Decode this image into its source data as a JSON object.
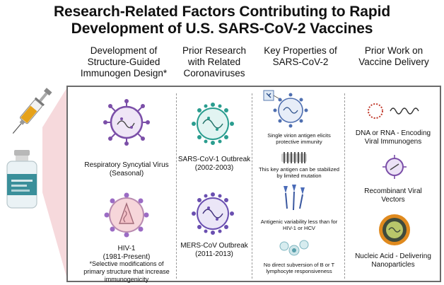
{
  "title": {
    "line1": "Research-Related Factors Contributing to Rapid",
    "line2": "Development of U.S. SARS-CoV-2 Vaccines"
  },
  "columns": [
    {
      "heading": [
        "Development of",
        "Structure-Guided",
        "Immunogen Design*"
      ],
      "items": [
        {
          "label": [
            "Respiratory Syncytial Virus",
            "(Seasonal)"
          ],
          "icon": "rsv-virus-icon"
        },
        {
          "label": [
            "HIV-1",
            "(1981-Present)"
          ],
          "icon": "hiv-virus-icon"
        }
      ],
      "note": [
        "*Selective modifications of",
        "primary structure that increase",
        "immunogenicity"
      ]
    },
    {
      "heading": [
        "Prior Research",
        "with Related",
        "Coronaviruses"
      ],
      "items": [
        {
          "label": [
            "SARS-CoV-1 Outbreak",
            "(2002-2003)"
          ],
          "icon": "sars-cov-1-virus-icon"
        },
        {
          "label": [
            "MERS-CoV Outbreak",
            "(2011-2013)"
          ],
          "icon": "mers-cov-virus-icon"
        }
      ]
    },
    {
      "heading": [
        "Key Properties of",
        "SARS-CoV-2"
      ],
      "items": [
        {
          "label": [
            "Single virion antigen elicits",
            "protective immunity"
          ],
          "icon": "virion-antigen-icon"
        },
        {
          "label": [
            "This key antigen can be stabilized",
            "by limited mutation"
          ],
          "icon": "stabilized-antigen-icon"
        },
        {
          "label": [
            "Antigenic variability less than for",
            "HIV-1 or HCV"
          ],
          "icon": "antigen-variants-icon"
        },
        {
          "label": [
            "No direct subversion of B or T",
            "lymphocyte responsiveness"
          ],
          "icon": "lymphocyte-icon"
        }
      ]
    },
    {
      "heading": [
        "Prior Work on",
        "Vaccine Delivery"
      ],
      "items": [
        {
          "label": [
            "DNA or RNA - Encoding",
            "Viral Immunogens"
          ],
          "icon": "dna-rna-icon"
        },
        {
          "label": [
            "Recombinant Viral",
            "Vectors"
          ],
          "icon": "viral-vector-icon"
        },
        {
          "label": [
            "Nucleic Acid - Delivering",
            "Nanoparticles"
          ],
          "icon": "nanoparticle-icon"
        }
      ]
    }
  ],
  "side_icons": [
    "syringe-icon",
    "vaccine-vial-icon"
  ],
  "colors": {
    "purple": "#7b4fa8",
    "teal": "#2a9d8f",
    "pink_band": "#f6d9dc",
    "panel_border": "#6b6b6b",
    "nanoparticle_orange": "#e08a1e",
    "vial_label": "#3a8f9a"
  }
}
